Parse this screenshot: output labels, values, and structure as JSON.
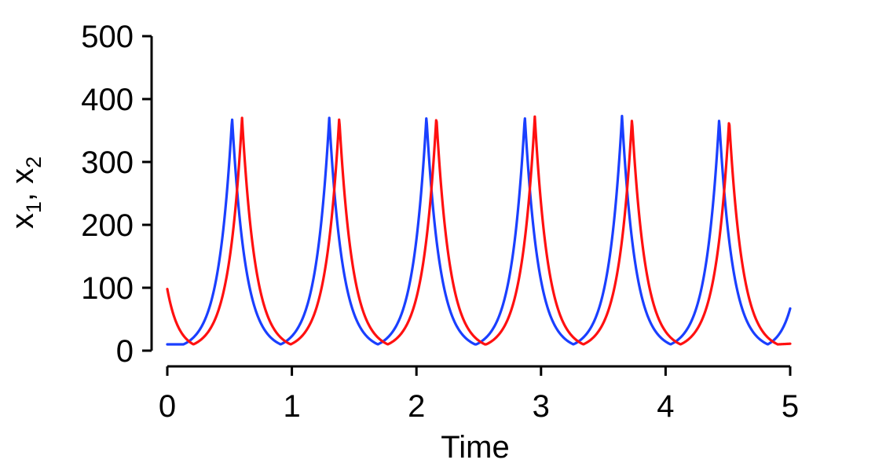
{
  "chart_data": {
    "type": "line",
    "title": "",
    "xlabel": "Time",
    "ylabel_parts": [
      "x",
      "1",
      ", x",
      "2"
    ],
    "xlim": [
      0,
      5
    ],
    "ylim": [
      0,
      500
    ],
    "x_ticks": [
      "0",
      "1",
      "2",
      "3",
      "4",
      "5"
    ],
    "y_ticks": [
      "0",
      "100",
      "200",
      "300",
      "400",
      "500"
    ],
    "grid": false,
    "legend": "none",
    "period": 0.78,
    "series": [
      {
        "color": "#1a3fff",
        "min_value": 10,
        "peaks": [
          {
            "t": 0.52,
            "value": 370
          },
          {
            "t": 1.3,
            "value": 370
          },
          {
            "t": 2.08,
            "value": 372
          },
          {
            "t": 2.87,
            "value": 372
          },
          {
            "t": 3.65,
            "value": 373
          },
          {
            "t": 4.43,
            "value": 368
          }
        ],
        "end_value": 67
      },
      {
        "color": "#ff1010",
        "min_value": 10,
        "start_value": 98,
        "peaks": [
          {
            "t": 0.6,
            "value": 370
          },
          {
            "t": 1.38,
            "value": 370
          },
          {
            "t": 2.16,
            "value": 372
          },
          {
            "t": 2.95,
            "value": 372
          },
          {
            "t": 3.73,
            "value": 368
          },
          {
            "t": 4.51,
            "value": 367
          }
        ],
        "end_value": 11
      }
    ]
  }
}
